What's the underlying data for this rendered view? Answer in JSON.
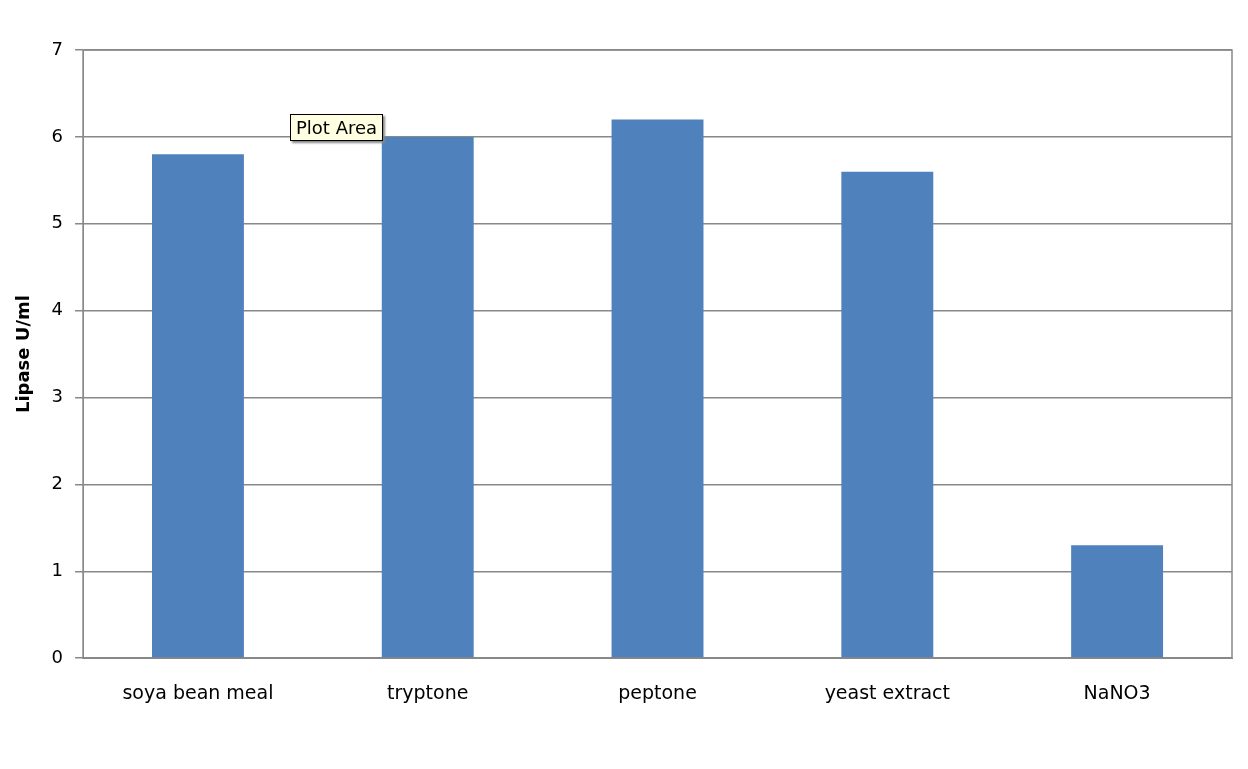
{
  "chart_data": {
    "type": "bar",
    "ylabel": "Lipase U/ml",
    "categories": [
      "soya bean meal",
      "tryptone",
      "peptone",
      "yeast extract",
      "NaNO3"
    ],
    "values": [
      5.8,
      6.0,
      6.2,
      5.6,
      1.3
    ],
    "color": "#4f81bd",
    "ylim": [
      0,
      7
    ],
    "yticks": [
      0,
      1,
      2,
      3,
      4,
      5,
      6,
      7
    ],
    "grid": "y",
    "legend": false,
    "annotations": [
      "Plot Area"
    ]
  }
}
